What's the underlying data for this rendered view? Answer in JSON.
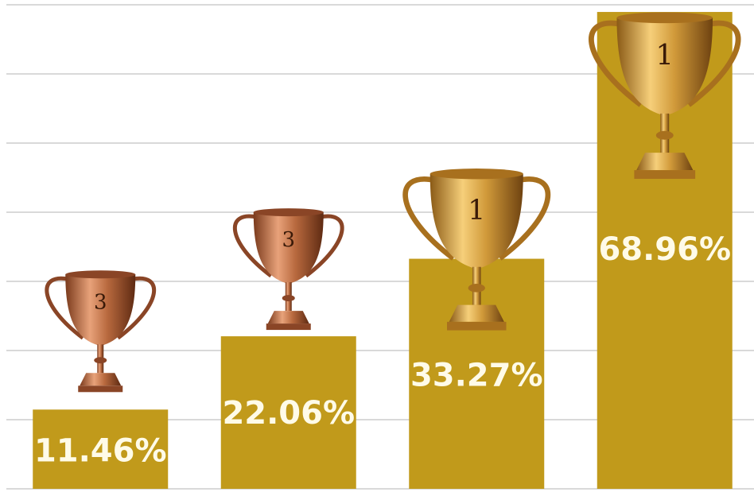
{
  "chart_data": {
    "type": "bar",
    "values": [
      11.46,
      22.06,
      33.27,
      68.96
    ],
    "value_labels": [
      "11.46%",
      "22.06%",
      "33.27%",
      "68.96%"
    ],
    "badges": [
      "3",
      "3",
      "1",
      "1"
    ],
    "color": "#c19a1b",
    "ylim": [
      0,
      70
    ],
    "yticks": [
      0,
      10,
      20,
      30,
      40,
      50,
      60,
      70
    ],
    "grid": true
  }
}
